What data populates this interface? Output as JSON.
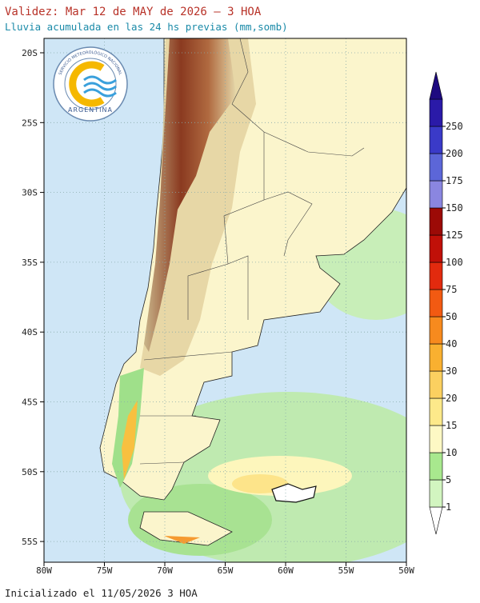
{
  "header": {
    "title": "Validez: Mar 12 de MAY de 2026 — 3 HOA",
    "subtitle": "Lluvia acumulada en las 24 hs previas (mm,somb)"
  },
  "logo": {
    "arc_text": "SERVICIO METEOROLÓGICO NACIONAL",
    "country": "ARGENTINA"
  },
  "map": {
    "lat_labels": [
      "20S",
      "25S",
      "30S",
      "35S",
      "40S",
      "45S",
      "50S",
      "55S"
    ],
    "lon_labels": [
      "80W",
      "75W",
      "70W",
      "65W",
      "60W",
      "55W",
      "50W"
    ]
  },
  "colorbar": {
    "labels": [
      "1",
      "5",
      "10",
      "15",
      "20",
      "30",
      "40",
      "50",
      "75",
      "100",
      "125",
      "150",
      "175",
      "200",
      "250"
    ],
    "colors": [
      "#d2f5c0",
      "#a8e88e",
      "#fdf8c4",
      "#fde98a",
      "#fbd060",
      "#f9b030",
      "#f78a1e",
      "#f25a12",
      "#e22a0e",
      "#c01008",
      "#9c0a06",
      "#8a86e0",
      "#5c66d8",
      "#3a3ac8",
      "#2a1aa8",
      "#1e0a80"
    ]
  },
  "footer": {
    "text": "Inicializado el 11/05/2026 3 HOA"
  }
}
